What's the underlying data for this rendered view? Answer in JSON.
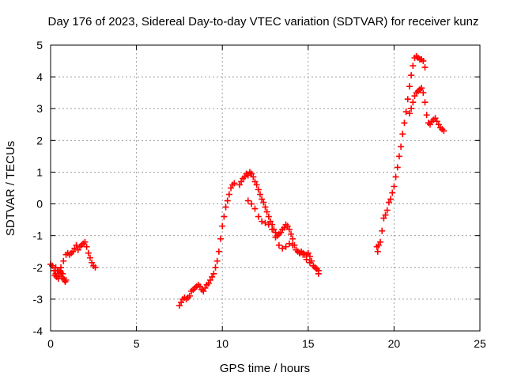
{
  "chart_data": {
    "type": "scatter",
    "title": "Day 176 of 2023, Sidereal Day-to-day VTEC variation (SDTVAR) for receiver kunz",
    "xlabel": "GPS time / hours",
    "ylabel": "SDTVAR / TECUs",
    "xlim": [
      0,
      25
    ],
    "ylim": [
      -4,
      5
    ],
    "xticks": [
      "0",
      "5",
      "10",
      "15",
      "20",
      "25"
    ],
    "yticks": [
      "-4",
      "-3",
      "-2",
      "-1",
      "0",
      "1",
      "2",
      "3",
      "4",
      "5"
    ],
    "grid": true,
    "marker": "+",
    "marker_color": "#ff0000",
    "series": [
      {
        "x": [
          0.0,
          0.1,
          0.2,
          0.25,
          0.3,
          0.35,
          0.4,
          0.45,
          0.5,
          0.55,
          0.6,
          0.65,
          0.7,
          0.75,
          0.8,
          0.85,
          0.9
        ],
        "y": [
          -1.9,
          -1.95,
          -2.1,
          -2.25,
          -2.2,
          -2.3,
          -2.1,
          -2.35,
          -2.25,
          -2.1,
          -2.15,
          -2.3,
          -2.2,
          -2.35,
          -2.4,
          -2.45,
          -2.4
        ]
      },
      {
        "x": [
          0.3,
          0.45,
          0.6,
          0.75,
          0.9,
          1.0,
          1.1,
          1.2,
          1.3,
          1.4,
          1.5,
          1.6,
          1.7,
          1.8,
          1.9,
          2.0,
          2.1,
          2.2,
          2.3,
          2.4,
          2.5,
          2.6
        ],
        "y": [
          -2.0,
          -2.1,
          -2.0,
          -1.8,
          -1.6,
          -1.55,
          -1.6,
          -1.55,
          -1.5,
          -1.4,
          -1.3,
          -1.45,
          -1.35,
          -1.3,
          -1.25,
          -1.2,
          -1.35,
          -1.55,
          -1.7,
          -1.85,
          -1.95,
          -2.0
        ]
      },
      {
        "x": [
          7.5,
          7.6,
          7.7,
          7.8,
          7.9,
          8.0,
          8.1,
          8.2,
          8.3,
          8.4,
          8.5,
          8.6,
          8.7,
          8.8,
          8.9,
          9.0,
          9.1,
          9.2,
          9.3,
          9.4,
          9.5,
          9.6,
          9.7,
          9.8,
          9.9,
          10.0,
          10.1,
          10.2,
          10.3,
          10.4,
          10.5,
          10.6,
          10.7
        ],
        "y": [
          -3.2,
          -3.1,
          -3.0,
          -2.95,
          -3.0,
          -2.95,
          -2.9,
          -2.75,
          -2.7,
          -2.65,
          -2.6,
          -2.55,
          -2.6,
          -2.7,
          -2.75,
          -2.65,
          -2.55,
          -2.5,
          -2.4,
          -2.3,
          -2.2,
          -2.0,
          -1.8,
          -1.5,
          -1.1,
          -0.7,
          -0.4,
          -0.1,
          0.1,
          0.3,
          0.5,
          0.6,
          0.65
        ]
      },
      {
        "x": [
          11.0,
          11.1,
          11.2,
          11.3,
          11.4,
          11.5,
          11.6,
          11.7,
          11.8,
          11.9,
          12.0,
          12.1,
          12.2,
          12.3,
          12.4,
          12.5,
          12.6,
          12.7,
          12.8,
          12.9,
          13.0,
          13.1,
          13.2,
          13.3,
          13.4,
          13.5,
          13.6,
          13.7,
          13.8,
          13.9,
          14.0,
          14.1,
          14.2,
          14.3,
          14.4,
          14.5,
          14.6,
          14.7,
          14.8,
          14.9,
          15.0,
          15.1,
          15.2,
          15.3,
          15.4,
          15.5,
          15.6
        ],
        "y": [
          0.6,
          0.7,
          0.8,
          0.85,
          0.95,
          0.9,
          1.0,
          0.95,
          0.85,
          0.7,
          0.6,
          0.45,
          0.3,
          0.15,
          0.05,
          -0.1,
          -0.25,
          -0.4,
          -0.55,
          -0.65,
          -0.8,
          -0.9,
          -1.0,
          -0.95,
          -0.9,
          -0.8,
          -0.75,
          -0.65,
          -0.7,
          -0.8,
          -0.95,
          -1.1,
          -1.3,
          -1.45,
          -1.5,
          -1.55,
          -1.5,
          -1.55,
          -1.6,
          -1.6,
          -1.55,
          -1.65,
          -1.8,
          -1.95,
          -2.0,
          -2.05,
          -2.1
        ]
      },
      {
        "x": [
          11.5,
          11.7,
          11.9,
          12.1,
          12.3,
          12.5,
          12.7,
          12.9,
          13.1,
          13.3,
          13.5,
          13.7,
          13.9,
          14.1,
          14.3,
          14.5,
          14.7,
          14.9,
          15.1,
          15.3,
          15.5,
          15.6
        ],
        "y": [
          0.1,
          0.0,
          -0.15,
          -0.4,
          -0.55,
          -0.6,
          -0.65,
          -0.8,
          -1.05,
          -1.3,
          -1.4,
          -1.35,
          -1.25,
          -1.3,
          -1.45,
          -1.55,
          -1.6,
          -1.75,
          -1.85,
          -1.95,
          -2.05,
          -2.2
        ]
      },
      {
        "x": [
          19.0,
          19.05,
          19.1,
          19.2,
          19.3,
          19.4,
          19.5,
          19.6,
          19.7,
          19.8,
          19.9,
          20.0,
          20.1,
          20.2,
          20.3,
          20.4,
          20.5,
          20.6,
          20.7,
          20.8,
          20.9,
          21.0,
          21.1,
          21.2,
          21.3,
          21.4,
          21.5,
          21.6,
          21.7,
          21.8
        ],
        "y": [
          -1.35,
          -1.5,
          -1.3,
          -1.2,
          -0.85,
          -0.45,
          -0.35,
          -0.2,
          0.05,
          0.15,
          0.35,
          0.55,
          0.85,
          1.15,
          1.5,
          1.8,
          2.2,
          2.55,
          2.9,
          3.3,
          3.7,
          4.05,
          4.35,
          4.6,
          4.65,
          4.6,
          4.55,
          4.55,
          4.5,
          4.3
        ]
      },
      {
        "x": [
          20.9,
          21.0,
          21.1,
          21.2,
          21.3,
          21.4,
          21.5,
          21.6,
          21.7,
          21.8,
          21.9,
          22.0,
          22.1,
          22.2,
          22.3,
          22.4,
          22.5,
          22.6,
          22.7,
          22.8,
          22.9
        ],
        "y": [
          2.85,
          3.0,
          3.2,
          3.4,
          3.5,
          3.55,
          3.6,
          3.65,
          3.5,
          3.2,
          2.8,
          2.55,
          2.5,
          2.6,
          2.65,
          2.7,
          2.6,
          2.5,
          2.4,
          2.35,
          2.3
        ]
      }
    ]
  }
}
